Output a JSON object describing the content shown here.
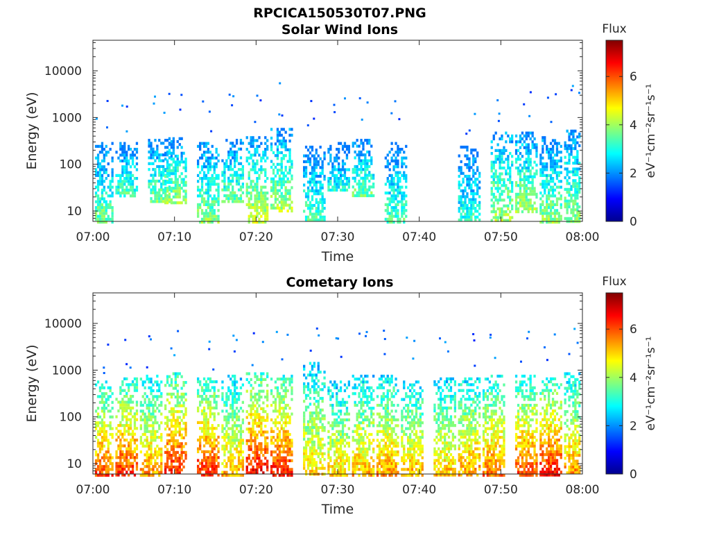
{
  "figure": {
    "filename_title": "RPCICA150530T07.PNG"
  },
  "colorbar": {
    "title": "Flux",
    "unit_label": "eV⁻¹cm⁻²sr⁻¹s⁻¹",
    "ticks": [
      "0",
      "2",
      "4",
      "6"
    ],
    "range": [
      0,
      7.5
    ],
    "colormap": "jet"
  },
  "chart_data": [
    {
      "type": "heatmap",
      "title": "Solar Wind Ions",
      "xlabel": "Time",
      "ylabel": "Energy (eV)",
      "x_ticks": [
        "07:00",
        "07:10",
        "07:20",
        "07:30",
        "07:40",
        "07:50",
        "08:00"
      ],
      "x_range": [
        "07:00",
        "08:00"
      ],
      "y_ticks": [
        "10",
        "100",
        "1000",
        "10000"
      ],
      "y_scale": "log",
      "y_range": [
        6,
        45000
      ],
      "bursts": [
        {
          "t": "07:01",
          "e_min": 6,
          "e_max": 300,
          "flux": 3.2
        },
        {
          "t": "07:04",
          "e_min": 20,
          "e_max": 300,
          "flux": 3.0
        },
        {
          "t": "07:08",
          "e_min": 15,
          "e_max": 350,
          "flux": 3.3
        },
        {
          "t": "07:10",
          "e_min": 15,
          "e_max": 380,
          "flux": 3.5
        },
        {
          "t": "07:14",
          "e_min": 6,
          "e_max": 300,
          "flux": 3.4
        },
        {
          "t": "07:17",
          "e_min": 15,
          "e_max": 350,
          "flux": 3.2
        },
        {
          "t": "07:20",
          "e_min": 6,
          "e_max": 400,
          "flux": 3.8
        },
        {
          "t": "07:23",
          "e_min": 10,
          "e_max": 600,
          "flux": 3.6
        },
        {
          "t": "07:27",
          "e_min": 6,
          "e_max": 250,
          "flux": 3.0
        },
        {
          "t": "07:30",
          "e_min": 30,
          "e_max": 300,
          "flux": 2.6
        },
        {
          "t": "07:33",
          "e_min": 20,
          "e_max": 350,
          "flux": 3.2
        },
        {
          "t": "07:37",
          "e_min": 6,
          "e_max": 300,
          "flux": 3.0
        },
        {
          "t": "07:46",
          "e_min": 6,
          "e_max": 250,
          "flux": 2.8
        },
        {
          "t": "07:50",
          "e_min": 6,
          "e_max": 500,
          "flux": 3.6
        },
        {
          "t": "07:53",
          "e_min": 10,
          "e_max": 500,
          "flux": 3.5
        },
        {
          "t": "07:56",
          "e_min": 6,
          "e_max": 400,
          "flux": 3.4
        },
        {
          "t": "07:59",
          "e_min": 6,
          "e_max": 550,
          "flux": 3.4
        }
      ]
    },
    {
      "type": "heatmap",
      "title": "Cometary Ions",
      "xlabel": "Time",
      "ylabel": "Energy (eV)",
      "x_ticks": [
        "07:00",
        "07:10",
        "07:20",
        "07:30",
        "07:40",
        "07:50",
        "08:00"
      ],
      "x_range": [
        "07:00",
        "08:00"
      ],
      "y_ticks": [
        "10",
        "100",
        "1000",
        "10000"
      ],
      "y_scale": "log",
      "y_range": [
        6,
        45000
      ],
      "bursts": [
        {
          "t": "07:01",
          "e_min": 6,
          "e_max": 600,
          "flux": 5.2
        },
        {
          "t": "07:04",
          "e_min": 6,
          "e_max": 700,
          "flux": 5.4
        },
        {
          "t": "07:07",
          "e_min": 6,
          "e_max": 800,
          "flux": 4.8
        },
        {
          "t": "07:10",
          "e_min": 6,
          "e_max": 900,
          "flux": 5.6
        },
        {
          "t": "07:14",
          "e_min": 6,
          "e_max": 700,
          "flux": 5.5
        },
        {
          "t": "07:17",
          "e_min": 6,
          "e_max": 800,
          "flux": 4.6
        },
        {
          "t": "07:20",
          "e_min": 6,
          "e_max": 900,
          "flux": 5.8
        },
        {
          "t": "07:23",
          "e_min": 6,
          "e_max": 800,
          "flux": 5.6
        },
        {
          "t": "07:27",
          "e_min": 6,
          "e_max": 1500,
          "flux": 4.4
        },
        {
          "t": "07:30",
          "e_min": 6,
          "e_max": 600,
          "flux": 4.4
        },
        {
          "t": "07:33",
          "e_min": 6,
          "e_max": 800,
          "flux": 4.6
        },
        {
          "t": "07:36",
          "e_min": 6,
          "e_max": 800,
          "flux": 4.8
        },
        {
          "t": "07:39",
          "e_min": 6,
          "e_max": 600,
          "flux": 4.6
        },
        {
          "t": "07:43",
          "e_min": 6,
          "e_max": 700,
          "flux": 4.5
        },
        {
          "t": "07:46",
          "e_min": 6,
          "e_max": 700,
          "flux": 4.8
        },
        {
          "t": "07:49",
          "e_min": 6,
          "e_max": 800,
          "flux": 5.0
        },
        {
          "t": "07:53",
          "e_min": 6,
          "e_max": 800,
          "flux": 5.3
        },
        {
          "t": "07:56",
          "e_min": 6,
          "e_max": 700,
          "flux": 5.6
        },
        {
          "t": "07:59",
          "e_min": 6,
          "e_max": 900,
          "flux": 4.8
        }
      ]
    }
  ]
}
